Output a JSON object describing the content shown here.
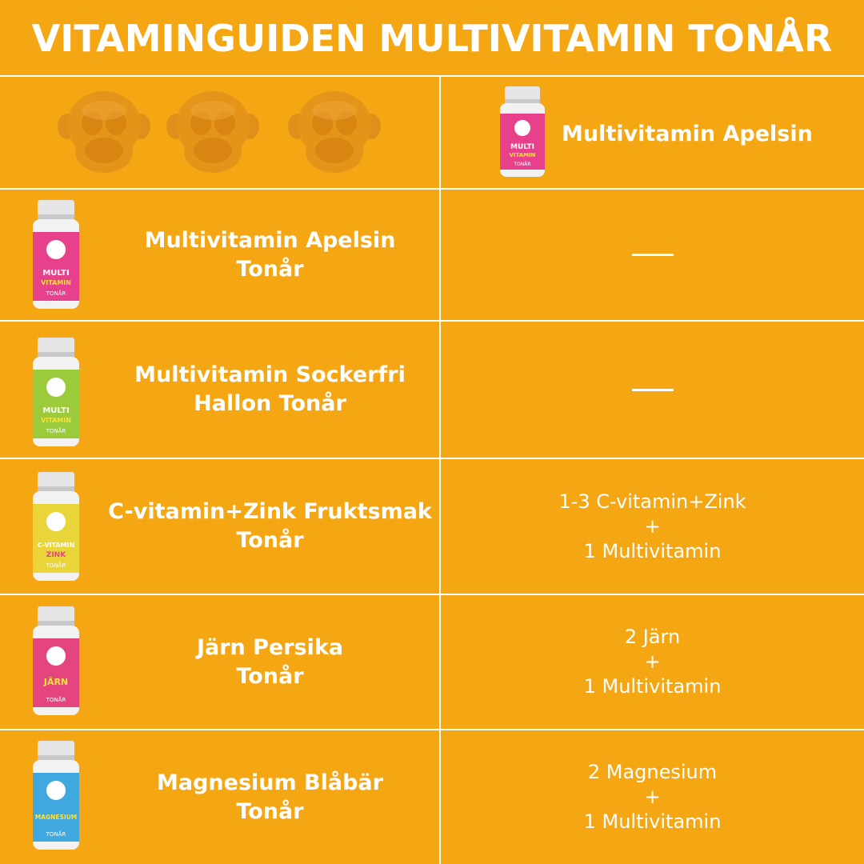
{
  "title": "VITAMINGUIDEN MULTIVITAMIN TONÅR",
  "header": {
    "product_name": "Multivitamin Apelsin",
    "jar": {
      "label_top": "MULTI",
      "label_bottom": "VITAMIN",
      "sub": "TONÅR",
      "color": "#E8418C"
    }
  },
  "colors": {
    "background": "#F5A613",
    "gummy": "#E0901A",
    "grid": "#FFFFFF",
    "text": "#FFFFFF"
  },
  "rows": [
    {
      "name_line1": "Multivitamin Apelsin",
      "name_line2": "Tonår",
      "combination": "—",
      "jar": {
        "label_top": "MULTI",
        "label_bottom": "VITAMIN",
        "sub": "TONÅR",
        "color": "#E8418C"
      }
    },
    {
      "name_line1": "Multivitamin Sockerfri",
      "name_line2": "Hallon Tonår",
      "combination": "—",
      "jar": {
        "label_top": "MULTI",
        "label_bottom": "VITAMIN",
        "sub": "TONÅR",
        "color": "#9BCB3B"
      }
    },
    {
      "name_line1": "C-vitamin+Zink Fruktsmak",
      "name_line2": "Tonår",
      "combination_line1": "1-3 C-vitamin+Zink",
      "combination_plus": "+",
      "combination_line2": "1 Multivitamin",
      "jar": {
        "label_top": "C-VITAMIN",
        "label_bottom": "ZINK",
        "sub": "TONÅR",
        "color": "#E9D43A"
      }
    },
    {
      "name_line1": "Järn Persika",
      "name_line2": "Tonår",
      "combination_line1": "2 Järn",
      "combination_plus": "+",
      "combination_line2": "1 Multivitamin",
      "jar": {
        "label_top": "JÄRN",
        "label_bottom": "",
        "sub": "TONÅR",
        "color": "#E4457E"
      }
    },
    {
      "name_line1": "Magnesium Blåbär",
      "name_line2": "Tonår",
      "combination_line1": "2 Magnesium",
      "combination_plus": "+",
      "combination_line2": "1 Multivitamin",
      "jar": {
        "label_top": "MAGNESIUM",
        "label_bottom": "",
        "sub": "TONÅR",
        "color": "#3FA8DF"
      }
    }
  ]
}
